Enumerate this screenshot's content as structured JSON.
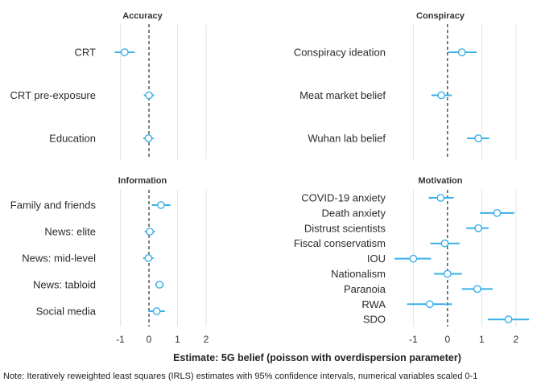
{
  "chart_data": {
    "type": "scatter",
    "subtype": "coefficient plot with 95% confidence intervals",
    "xlabel": "Estimate: 5G belief (poisson with overdispersion parameter)",
    "note": "Note: Iteratively reweighted least squares (IRLS) estimates with 95% confidence intervals, numerical variables scaled 0-1",
    "xlim": [
      -1.55,
      2.45
    ],
    "xticks": [
      -1,
      0,
      1,
      2
    ],
    "reference_line": 0,
    "grid": true,
    "colors": {
      "point_fill": "#ffffff",
      "interval": "#3ab0e8",
      "zero_line": "#000000",
      "grid": "#e3e3e3"
    },
    "panels": [
      {
        "title": "Accuracy",
        "items": [
          {
            "label": "CRT",
            "estimate": -0.85,
            "lower": -1.2,
            "upper": -0.5
          },
          {
            "label": "CRT pre-exposure",
            "estimate": 0.0,
            "lower": -0.18,
            "upper": 0.18
          },
          {
            "label": "Education",
            "estimate": -0.02,
            "lower": -0.2,
            "upper": 0.16
          }
        ]
      },
      {
        "title": "Conspiracy",
        "items": [
          {
            "label": "Conspiracy ideation",
            "estimate": 0.42,
            "lower": 0.02,
            "upper": 0.85
          },
          {
            "label": "Meat market belief",
            "estimate": -0.18,
            "lower": -0.47,
            "upper": 0.12
          },
          {
            "label": "Wuhan lab belief",
            "estimate": 0.9,
            "lower": 0.57,
            "upper": 1.22
          }
        ]
      },
      {
        "title": "Information",
        "items": [
          {
            "label": "Family and friends",
            "estimate": 0.42,
            "lower": 0.1,
            "upper": 0.75
          },
          {
            "label": "News: elite",
            "estimate": 0.03,
            "lower": -0.15,
            "upper": 0.21
          },
          {
            "label": "News: mid-level",
            "estimate": -0.02,
            "lower": -0.2,
            "upper": 0.16
          },
          {
            "label": "News: tabloid",
            "estimate": 0.37,
            "lower": 0.22,
            "upper": 0.52
          },
          {
            "label": "Social media",
            "estimate": 0.27,
            "lower": -0.02,
            "upper": 0.56
          }
        ]
      },
      {
        "title": "Motivation",
        "items": [
          {
            "label": "COVID-19 anxiety",
            "estimate": -0.2,
            "lower": -0.55,
            "upper": 0.18
          },
          {
            "label": "Death anxiety",
            "estimate": 1.45,
            "lower": 0.95,
            "upper": 1.95
          },
          {
            "label": "Distrust scientists",
            "estimate": 0.9,
            "lower": 0.55,
            "upper": 1.2
          },
          {
            "label": "Fiscal conservatism",
            "estimate": -0.08,
            "lower": -0.5,
            "upper": 0.35
          },
          {
            "label": "IOU",
            "estimate": -1.0,
            "lower": -1.55,
            "upper": -0.48
          },
          {
            "label": "Nationalism",
            "estimate": 0.0,
            "lower": -0.4,
            "upper": 0.42
          },
          {
            "label": "Paranoia",
            "estimate": 0.87,
            "lower": 0.42,
            "upper": 1.32
          },
          {
            "label": "RWA",
            "estimate": -0.52,
            "lower": -1.18,
            "upper": 0.13
          },
          {
            "label": "SDO",
            "estimate": 1.78,
            "lower": 1.18,
            "upper": 2.38
          }
        ]
      }
    ]
  }
}
